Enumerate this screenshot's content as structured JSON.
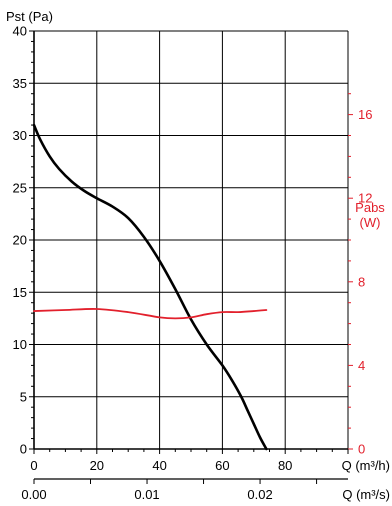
{
  "chart_data": {
    "type": "line",
    "colors": {
      "pressure": "#000000",
      "power": "#e2202c",
      "grid": "#000000"
    },
    "y_left": {
      "label": "Pst (Pa)",
      "range": [
        0,
        40
      ],
      "ticks": [
        0,
        5,
        10,
        15,
        20,
        25,
        30,
        35,
        40
      ],
      "tick_labels": [
        "0",
        "5",
        "10",
        "15",
        "20",
        "25",
        "30",
        "35",
        "40"
      ]
    },
    "y_right": {
      "label_line1": "Pabs",
      "label_line2": "(W)",
      "range": [
        0,
        20
      ],
      "ticks": [
        0,
        4,
        8,
        12,
        16
      ],
      "tick_labels": [
        "0",
        "4",
        "8",
        "12",
        "16"
      ]
    },
    "x_top": {
      "label": "Q (m³/h)",
      "range": [
        0,
        100
      ],
      "ticks": [
        0,
        20,
        40,
        60,
        80
      ],
      "tick_labels": [
        "0",
        "20",
        "40",
        "60",
        "80"
      ]
    },
    "x_bottom": {
      "label": "Q (m³/s)",
      "range": [
        0,
        0.02778
      ],
      "ticks": [
        0,
        0.01,
        0.02
      ],
      "tick_labels": [
        "0.00",
        "0.01",
        "0.02"
      ]
    },
    "grid": true,
    "series": [
      {
        "axis": "left",
        "x": [
          0,
          2,
          5,
          8,
          12,
          16,
          20,
          25,
          30,
          35,
          40,
          45,
          50,
          55,
          60,
          63,
          66,
          68,
          70,
          72,
          74
        ],
        "y": [
          31,
          29.6,
          28.0,
          26.8,
          25.6,
          24.7,
          24.0,
          23.2,
          22.1,
          20.3,
          18.0,
          15.3,
          12.4,
          10.0,
          8.0,
          6.6,
          5.0,
          3.7,
          2.4,
          1.1,
          0
        ]
      },
      {
        "axis": "right",
        "x": [
          0,
          10,
          20,
          30,
          40,
          45,
          50,
          55,
          60,
          65,
          70,
          74
        ],
        "y": [
          6.6,
          6.65,
          6.7,
          6.55,
          6.3,
          6.25,
          6.3,
          6.45,
          6.55,
          6.55,
          6.6,
          6.65
        ]
      }
    ]
  }
}
